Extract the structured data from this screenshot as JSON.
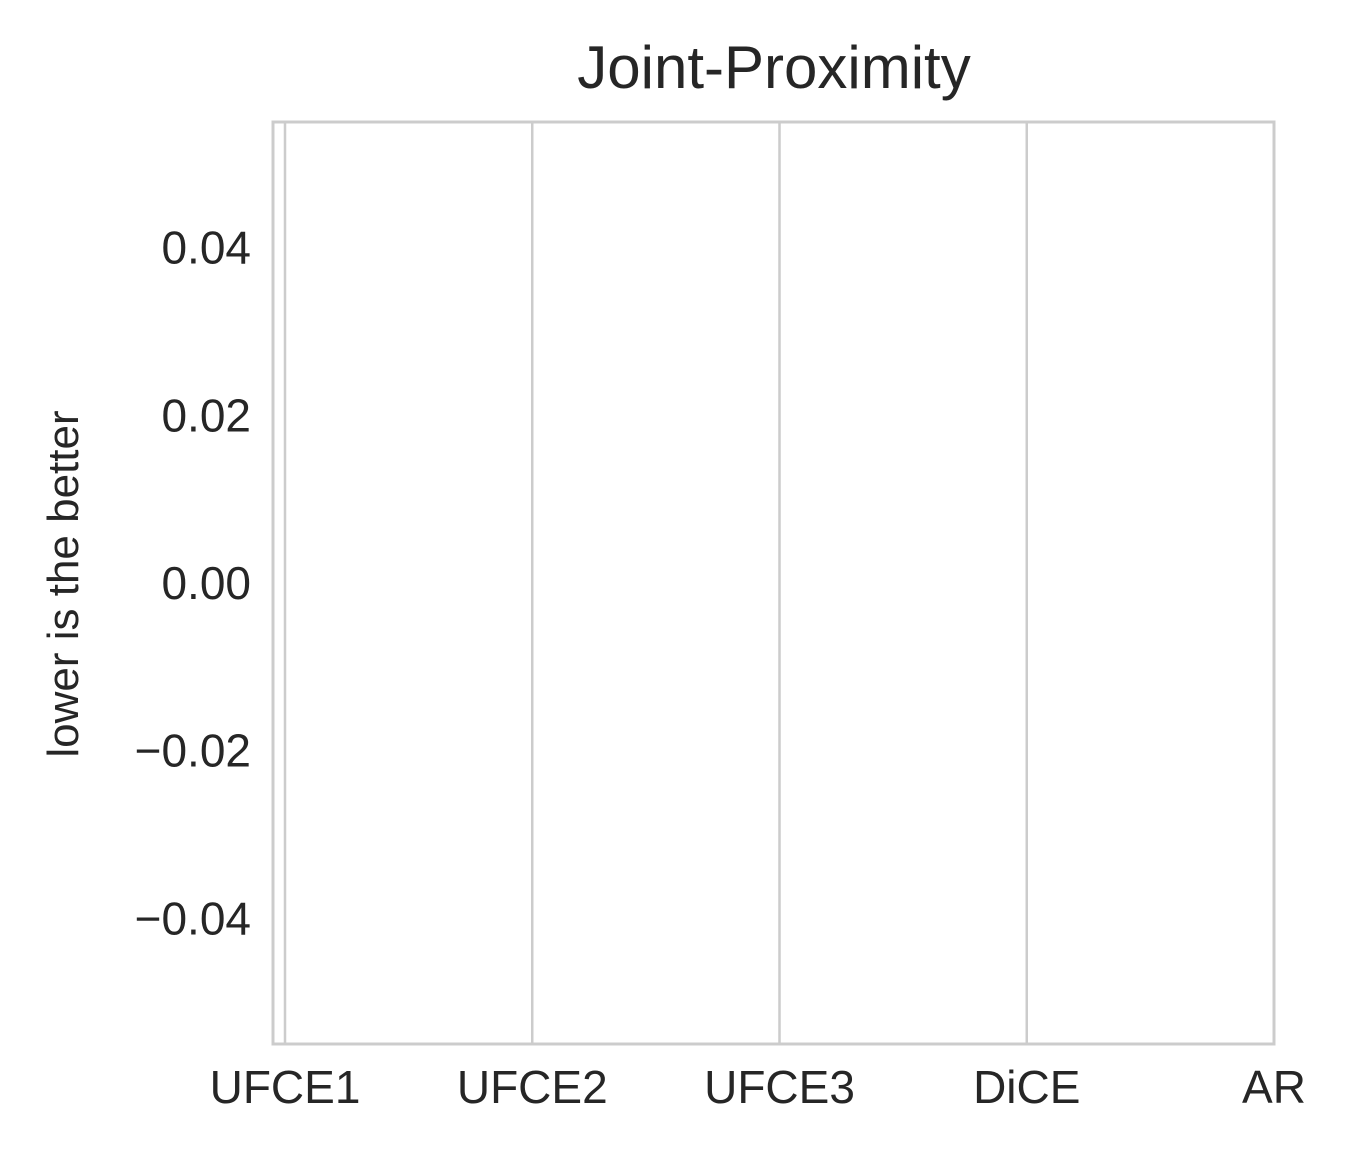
{
  "chart_data": {
    "type": "bar",
    "title": "Joint-Proximity",
    "xlabel": "",
    "ylabel": "lower is the better",
    "categories": [
      "UFCE1",
      "UFCE2",
      "UFCE3",
      "DiCE",
      "AR"
    ],
    "series": [],
    "ylim": [
      -0.055,
      0.055
    ],
    "yticks": [
      -0.04,
      -0.02,
      0.0,
      0.02,
      0.04
    ],
    "ytick_labels": [
      "−0.04",
      "−0.02",
      "0.00",
      "0.02",
      "0.04"
    ],
    "grid": true,
    "grid_axis": "x",
    "legend": "none",
    "colors": {
      "background": "#ffffff",
      "grid": "#cccccc",
      "spine": "#cccccc",
      "text": "#262626"
    }
  }
}
